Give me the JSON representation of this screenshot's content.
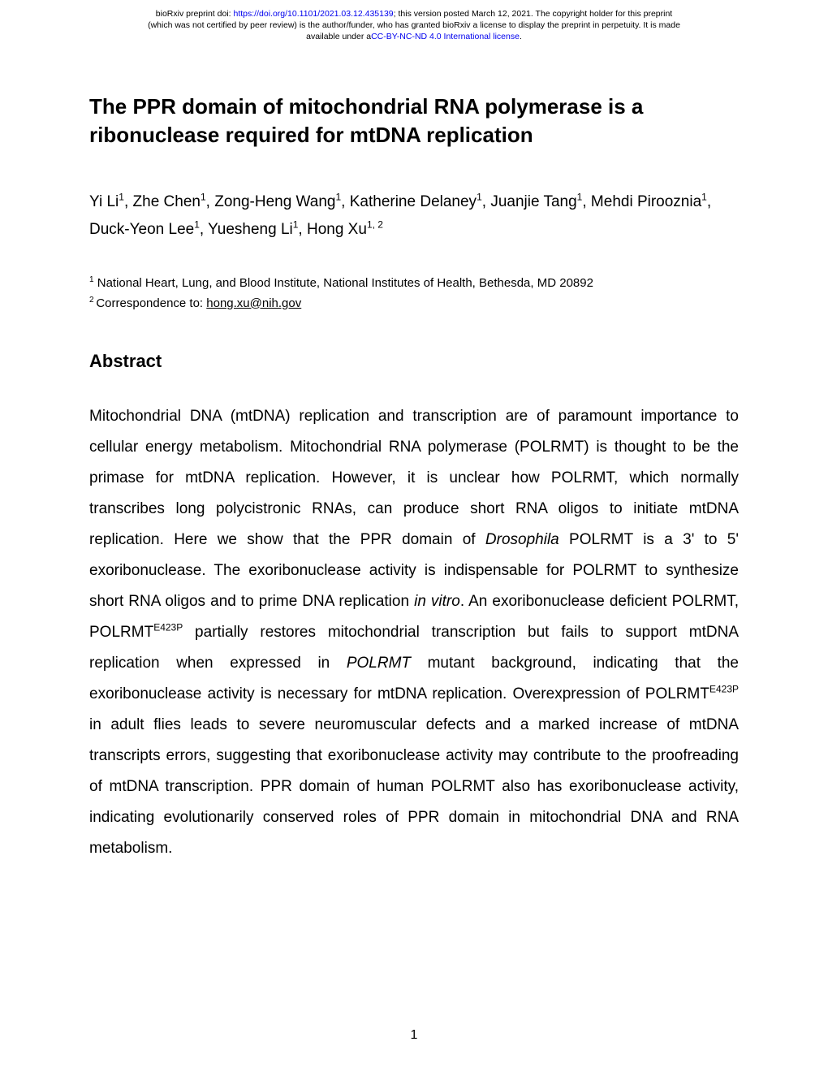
{
  "header": {
    "line1_prefix": "bioRxiv preprint doi: ",
    "doi_url": "https://doi.org/10.1101/2021.03.12.435139",
    "line1_suffix": "; this version posted March 12, 2021. The copyright holder for this preprint",
    "line2": "(which was not certified by peer review) is the author/funder, who has granted bioRxiv a license to display the preprint in perpetuity. It is made",
    "line3_prefix": "available under a",
    "license_text": "CC-BY-NC-ND 4.0 International license",
    "line3_suffix": "."
  },
  "title": "The PPR domain of mitochondrial RNA polymerase is a ribonuclease required for mtDNA replication",
  "authors": {
    "a1": "Yi Li",
    "s1": "1",
    "a2": "Zhe Chen",
    "s2": "1",
    "a3": "Zong-Heng Wang",
    "s3": "1",
    "a4": "Katherine Delaney",
    "s4": "1",
    "a5": "Juanjie Tang",
    "s5": "1",
    "a6": "Mehdi Pirooznia",
    "s6": "1",
    "a7": "Duck-Yeon Lee",
    "s7": "1",
    "a8": "Yuesheng Li",
    "s8": "1",
    "a9": "Hong Xu",
    "s9": "1, 2"
  },
  "affiliation": {
    "sup": "1",
    "text": " National Heart, Lung, and Blood Institute, National Institutes of Health, Bethesda, MD 20892"
  },
  "correspondence": {
    "sup": "2 ",
    "label": "Correspondence to: ",
    "email": "hong.xu@nih.gov"
  },
  "abstract_heading": "Abstract",
  "abstract": {
    "p1_a": "Mitochondrial DNA (mtDNA) replication and transcription are of paramount importance to cellular energy metabolism. Mitochondrial RNA polymerase (POLRMT) is thought to be the primase for mtDNA replication. However, it is unclear how POLRMT, which normally transcribes long polycistronic RNAs, can produce short RNA oligos to initiate mtDNA replication. Here we show that the PPR domain of ",
    "p1_em1": "Drosophila",
    "p1_b": " POLRMT is a 3' to 5' exoribonuclease. The exoribonuclease activity is indispensable for POLRMT to synthesize short RNA oligos and to prime DNA replication ",
    "p1_em2": "in vitro",
    "p1_c": ". An exoribonuclease deficient POLRMT, POLRMT",
    "p1_sup1": "E423P",
    "p1_d": " partially restores mitochondrial transcription but fails to support mtDNA replication when expressed in ",
    "p1_em3": "POLRMT",
    "p1_e": " mutant background, indicating that the exoribonuclease activity is necessary for mtDNA replication.  Overexpression of POLRMT",
    "p1_sup2": "E423P",
    "p1_f": " in adult flies leads to severe neuromuscular defects and a marked increase of mtDNA transcripts errors, suggesting that exoribonuclease activity may contribute to the proofreading of mtDNA transcription. PPR domain of human POLRMT also has exoribonuclease activity, indicating evolutionarily conserved roles of PPR domain in mitochondrial DNA and RNA metabolism."
  },
  "page_number": "1"
}
